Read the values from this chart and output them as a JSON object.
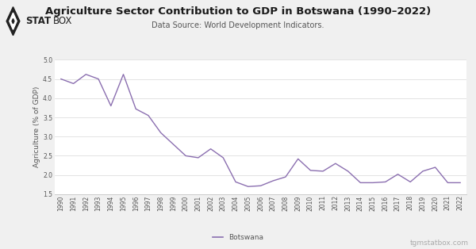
{
  "title": "Agriculture Sector Contribution to GDP in Botswana (1990–2022)",
  "subtitle": "Data Source: World Development Indicators.",
  "ylabel": "Agriculture (% of GDP)",
  "line_color": "#8B6FB0",
  "background_color": "#f0f0f0",
  "plot_bg_color": "#ffffff",
  "years": [
    1990,
    1991,
    1992,
    1993,
    1994,
    1995,
    1996,
    1997,
    1998,
    1999,
    2000,
    2001,
    2002,
    2003,
    2004,
    2005,
    2006,
    2007,
    2008,
    2009,
    2010,
    2011,
    2012,
    2013,
    2014,
    2015,
    2016,
    2017,
    2018,
    2019,
    2020,
    2021,
    2022
  ],
  "values": [
    4.5,
    4.38,
    4.62,
    4.5,
    3.8,
    4.62,
    3.72,
    3.55,
    3.1,
    2.8,
    2.5,
    2.45,
    2.68,
    2.45,
    1.82,
    1.7,
    1.72,
    1.85,
    1.95,
    2.42,
    2.12,
    2.1,
    2.3,
    2.1,
    1.8,
    1.8,
    1.82,
    2.02,
    1.82,
    2.1,
    2.2,
    1.8,
    1.8
  ],
  "ylim": [
    1.5,
    5.0
  ],
  "yticks": [
    1.5,
    2.0,
    2.5,
    3.0,
    3.5,
    4.0,
    4.5,
    5.0
  ],
  "legend_label": "Botswana",
  "watermark": "tgmstatbox.com",
  "title_fontsize": 9.5,
  "subtitle_fontsize": 7,
  "axis_label_fontsize": 6.5,
  "tick_fontsize": 5.5,
  "legend_fontsize": 6.5,
  "watermark_fontsize": 6.5,
  "grid_color": "#d8d8d8",
  "tick_color": "#555555",
  "axis_line_color": "#cccccc",
  "logo_diamond_color": "#222222",
  "logo_stat_color": "#222222",
  "logo_box_color": "#222222"
}
